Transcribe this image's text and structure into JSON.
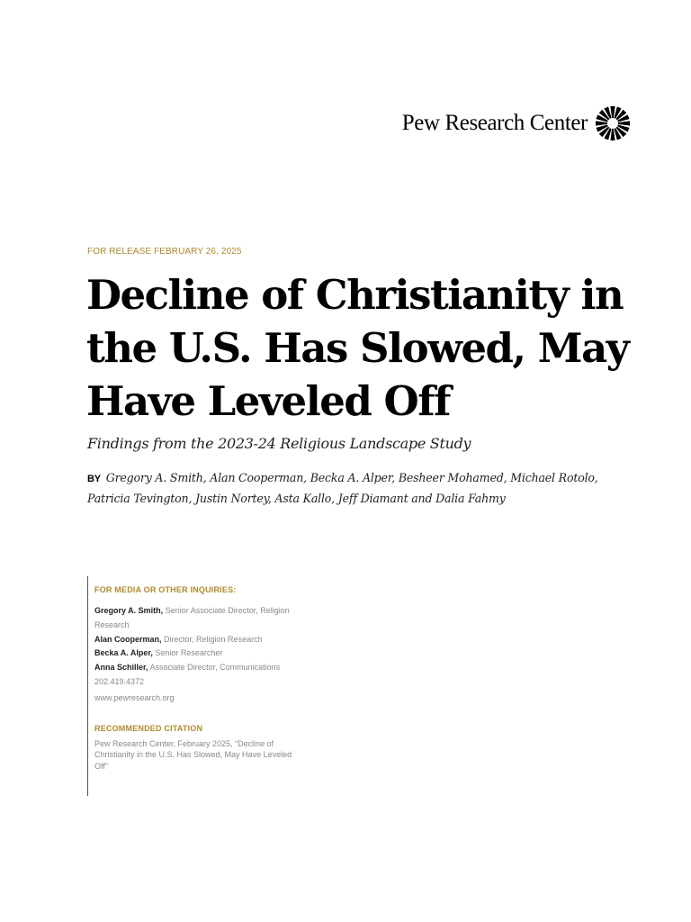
{
  "header": {
    "organization": "Pew Research Center",
    "logo_icon": "sunburst-icon"
  },
  "release_line": "FOR RELEASE FEBRUARY 26, 2025",
  "title": "Decline of Christianity in the U.S. Has Slowed, May Have Leveled Off",
  "subtitle": "Findings from the 2023-24 Religious Landscape Study",
  "byline": {
    "label": "BY",
    "authors": "Gregory A. Smith, Alan Cooperman, Becka A. Alper, Besheer Mohamed, Michael Rotolo, Patricia Tevington, Justin Nortey, Asta Kallo, Jeff Diamant and Dalia Fahmy"
  },
  "media_inquiries": {
    "heading": "FOR MEDIA OR OTHER INQUIRIES:",
    "contacts": [
      {
        "name": "Gregory A. Smith,",
        "role": "Senior Associate Director, Religion Research"
      },
      {
        "name": "Alan Cooperman,",
        "role": "Director, Religion Research"
      },
      {
        "name": "Becka A. Alper,",
        "role": "Senior Researcher"
      },
      {
        "name": "Anna Schiller,",
        "role": "Associate Director, Communications"
      }
    ],
    "phone": "202.419.4372",
    "website": "www.pewresearch.org"
  },
  "citation": {
    "heading": "RECOMMENDED CITATION",
    "text": "Pew Research Center, February 2025, “Decline of Christianity in the U.S. Has Slowed, May Have Leveled Off”"
  },
  "colors": {
    "accent_gold": "#b08a2e",
    "text": "#000000",
    "muted": "#888888"
  }
}
